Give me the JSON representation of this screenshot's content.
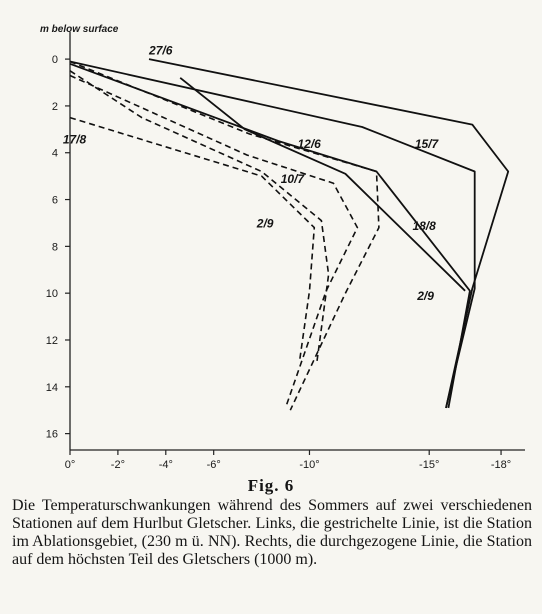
{
  "figure_title": "Fig. 6",
  "caption": "Die Temperaturschwankungen während des Sommers auf zwei verschiedenen Stationen auf dem Hurlbut Gletscher. Links, die gestrichelte Linie, ist die Station im Ablationsgebiet, (230 m ü. NN). Rechts, die durchgezogene Linie, die Station auf dem höchsten Teil des Gletschers (1000 m).",
  "chart_data": {
    "type": "line",
    "title": "",
    "xlabel": "",
    "ylabel": "m below surface",
    "xlim": [
      0,
      -19
    ],
    "ylim": [
      16.7,
      -1.5
    ],
    "xticks": [
      0,
      -2,
      -4,
      -6,
      -10,
      -15,
      -18
    ],
    "xtick_labels": [
      "0°",
      "-2°",
      "-4°",
      "-6°",
      "-10°",
      "-15°",
      "-18°"
    ],
    "yticks": [
      0,
      2,
      4,
      6,
      8,
      10,
      12,
      14,
      16
    ],
    "ytick_labels": [
      "0",
      "2",
      "4",
      "6",
      "8",
      "10",
      "12",
      "14",
      "16"
    ],
    "series": [
      {
        "name": "27/6",
        "style": "solid",
        "label_pos": {
          "x": -3.3,
          "y": -0.2
        },
        "x": [
          -3.3,
          -16.8,
          -18.3,
          -16.8,
          -15.7
        ],
        "y": [
          0,
          2.8,
          4.8,
          9.8,
          14.9
        ]
      },
      {
        "name": "15/7",
        "style": "solid",
        "label_pos": {
          "x": -14.4,
          "y": 3.8
        },
        "x": [
          0,
          -12.2,
          -16.9,
          -16.9,
          -15.7
        ],
        "y": [
          0.1,
          2.9,
          4.8,
          9.8,
          14.9
        ]
      },
      {
        "name": "18/8",
        "style": "solid",
        "label_pos": {
          "x": -14.3,
          "y": 7.3
        },
        "x": [
          0,
          -8.7,
          -12.8,
          -16.7,
          -15.8
        ],
        "y": [
          0.2,
          3.5,
          4.8,
          9.9,
          14.9
        ]
      },
      {
        "name": "2/9",
        "style": "solid",
        "label_pos": {
          "x": -14.5,
          "y": 10.3
        },
        "x": [
          -4.6,
          -7.3,
          -11.5,
          -16.5
        ],
        "y": [
          0.8,
          3.0,
          4.9,
          9.9
        ]
      },
      {
        "name": "12/6",
        "style": "dashed",
        "label_pos": {
          "x": -9.5,
          "y": 3.8
        },
        "x": [
          0,
          -7.5,
          -12.8,
          -12.9,
          -11.5,
          -9.2
        ],
        "y": [
          0.1,
          3.2,
          4.8,
          7.2,
          10.0,
          15.0
        ]
      },
      {
        "name": "10/7",
        "style": "dashed",
        "label_pos": {
          "x": -8.8,
          "y": 5.3
        },
        "x": [
          0,
          -7.4,
          -11.0,
          -12.0,
          -10.7,
          -9.0
        ],
        "y": [
          0.7,
          4.1,
          5.3,
          7.2,
          9.9,
          14.9
        ]
      },
      {
        "name": "2/9",
        "style": "dashed",
        "label_pos": {
          "x": -7.8,
          "y": 7.2
        },
        "x": [
          0,
          -3.0,
          -8.0,
          -10.5,
          -10.8,
          -10.3
        ],
        "y": [
          0.5,
          2.5,
          4.8,
          6.9,
          9.2,
          13.0
        ]
      },
      {
        "name": "17/8",
        "style": "dashed",
        "label_pos": {
          "x": 0.3,
          "y": 3.6
        },
        "x": [
          0,
          -8.0,
          -10.2,
          -10.0,
          -9.6
        ],
        "y": [
          2.5,
          5.0,
          7.2,
          9.9,
          12.8
        ]
      }
    ],
    "grid": false,
    "legend": "none"
  }
}
